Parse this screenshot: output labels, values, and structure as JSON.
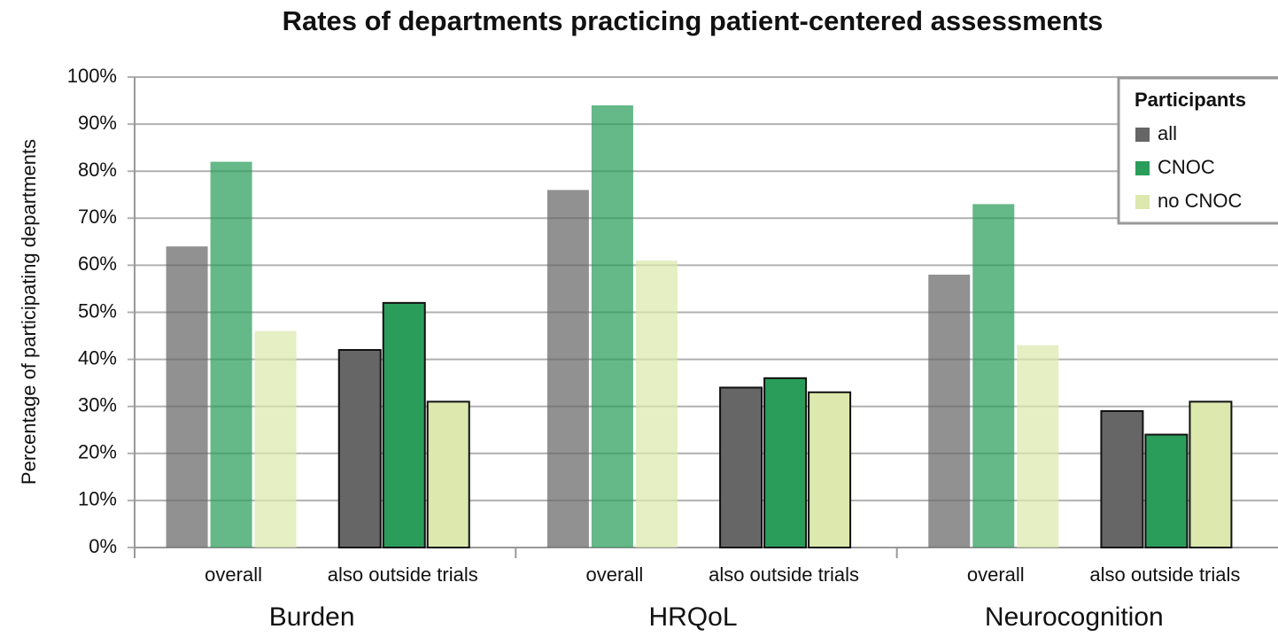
{
  "chart_data": {
    "type": "bar",
    "title": "Rates of departments practicing patient-centered assessments",
    "ylabel": "Percentage of participating departments",
    "groups": [
      "Burden",
      "HRQoL",
      "Neurocognition"
    ],
    "categories": [
      "overall",
      "also outside trials",
      "overall",
      "also outside trials",
      "overall",
      "also outside trials"
    ],
    "series": [
      {
        "name": "all",
        "color": "#666666",
        "values": [
          64,
          42,
          76,
          34,
          58,
          29
        ]
      },
      {
        "name": "CNOC",
        "color": "#2a9d5a",
        "values": [
          82,
          52,
          94,
          36,
          73,
          24
        ]
      },
      {
        "name": "no CNOC",
        "color": "#dce8ad",
        "values": [
          46,
          31,
          61,
          33,
          43,
          31
        ]
      }
    ],
    "legend_title": "Participants",
    "legend": "top-right",
    "ylim": [
      0,
      100
    ],
    "yticks": [
      {
        "value": 0,
        "label": "0%"
      },
      {
        "value": 10,
        "label": "10%"
      },
      {
        "value": 20,
        "label": "20%"
      },
      {
        "value": 30,
        "label": "30%"
      },
      {
        "value": 40,
        "label": "40%"
      },
      {
        "value": 50,
        "label": "50%"
      },
      {
        "value": 60,
        "label": "60%"
      },
      {
        "value": 70,
        "label": "70%"
      },
      {
        "value": 80,
        "label": "80%"
      },
      {
        "value": 90,
        "label": "90%"
      },
      {
        "value": 100,
        "label": "100%"
      }
    ],
    "grid": true
  }
}
